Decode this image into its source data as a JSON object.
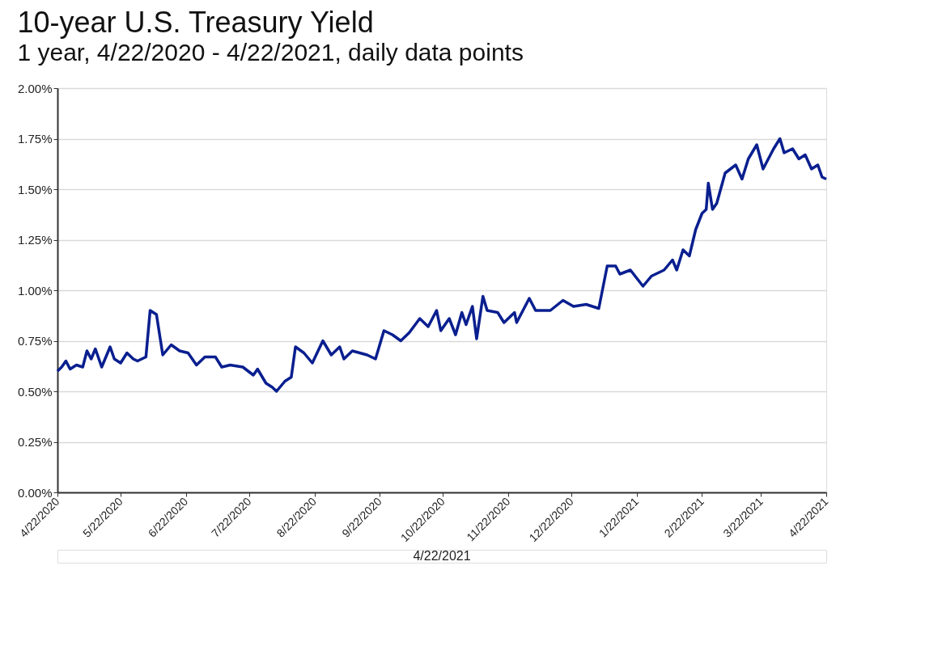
{
  "chart_data": {
    "type": "line",
    "title": "10-year U.S. Treasury Yield",
    "subtitle": "1 year, 4/22/2020 - 4/22/2021, daily data points",
    "annotations": [
      "4/22/2021"
    ],
    "x": [
      "2020-04-22",
      "2020-04-24",
      "2020-04-26",
      "2020-04-28",
      "2020-05-01",
      "2020-05-04",
      "2020-05-06",
      "2020-05-08",
      "2020-05-10",
      "2020-05-13",
      "2020-05-17",
      "2020-05-19",
      "2020-05-22",
      "2020-05-25",
      "2020-05-28",
      "2020-05-30",
      "2020-06-03",
      "2020-06-05",
      "2020-06-08",
      "2020-06-11",
      "2020-06-15",
      "2020-06-19",
      "2020-06-23",
      "2020-06-27",
      "2020-07-01",
      "2020-07-06",
      "2020-07-09",
      "2020-07-13",
      "2020-07-19",
      "2020-07-24",
      "2020-07-26",
      "2020-07-30",
      "2020-08-02",
      "2020-08-04",
      "2020-08-08",
      "2020-08-11",
      "2020-08-13",
      "2020-08-17",
      "2020-08-21",
      "2020-08-26",
      "2020-08-30",
      "2020-09-03",
      "2020-09-05",
      "2020-09-09",
      "2020-09-16",
      "2020-09-20",
      "2020-09-24",
      "2020-09-28",
      "2020-10-02",
      "2020-10-06",
      "2020-10-11",
      "2020-10-15",
      "2020-10-19",
      "2020-10-21",
      "2020-10-25",
      "2020-10-28",
      "2020-10-31",
      "2020-11-02",
      "2020-11-05",
      "2020-11-07",
      "2020-11-10",
      "2020-11-12",
      "2020-11-17",
      "2020-11-20",
      "2020-11-25",
      "2020-11-26",
      "2020-12-02",
      "2020-12-05",
      "2020-12-12",
      "2020-12-18",
      "2020-12-23",
      "2020-12-29",
      "2021-01-04",
      "2021-01-08",
      "2021-01-12",
      "2021-01-14",
      "2021-01-19",
      "2021-01-25",
      "2021-01-29",
      "2021-02-04",
      "2021-02-08",
      "2021-02-10",
      "2021-02-13",
      "2021-02-16",
      "2021-02-19",
      "2021-02-22",
      "2021-02-24",
      "2021-02-25",
      "2021-02-27",
      "2021-03-01",
      "2021-03-05",
      "2021-03-10",
      "2021-03-13",
      "2021-03-16",
      "2021-03-20",
      "2021-03-23",
      "2021-03-28",
      "2021-03-31",
      "2021-04-02",
      "2021-04-06",
      "2021-04-09",
      "2021-04-12",
      "2021-04-15",
      "2021-04-18",
      "2021-04-20",
      "2021-04-22"
    ],
    "series": [
      {
        "color": "#0a1f8f",
        "values": [
          0.6,
          0.62,
          0.65,
          0.61,
          0.63,
          0.62,
          0.7,
          0.66,
          0.71,
          0.62,
          0.72,
          0.66,
          0.64,
          0.69,
          0.66,
          0.65,
          0.67,
          0.9,
          0.88,
          0.68,
          0.73,
          0.7,
          0.69,
          0.63,
          0.67,
          0.67,
          0.62,
          0.63,
          0.62,
          0.58,
          0.61,
          0.54,
          0.52,
          0.5,
          0.55,
          0.57,
          0.72,
          0.69,
          0.64,
          0.75,
          0.68,
          0.72,
          0.66,
          0.7,
          0.68,
          0.66,
          0.8,
          0.78,
          0.75,
          0.79,
          0.86,
          0.82,
          0.9,
          0.8,
          0.86,
          0.78,
          0.89,
          0.83,
          0.92,
          0.76,
          0.97,
          0.9,
          0.89,
          0.84,
          0.89,
          0.84,
          0.96,
          0.9,
          0.9,
          0.95,
          0.92,
          0.93,
          0.91,
          1.12,
          1.12,
          1.08,
          1.1,
          1.02,
          1.07,
          1.1,
          1.15,
          1.1,
          1.2,
          1.17,
          1.3,
          1.38,
          1.4,
          1.53,
          1.4,
          1.43,
          1.58,
          1.62,
          1.55,
          1.65,
          1.72,
          1.6,
          1.7,
          1.75,
          1.68,
          1.7,
          1.65,
          1.67,
          1.6,
          1.62,
          1.56,
          1.55
        ]
      }
    ],
    "xlim": [
      "2020-04-22",
      "2021-04-22"
    ],
    "xticks": [
      {
        "value": "2020-04-22",
        "label": "4/22/2020"
      },
      {
        "value": "2020-05-22",
        "label": "5/22/2020"
      },
      {
        "value": "2020-06-22",
        "label": "6/22/2020"
      },
      {
        "value": "2020-07-22",
        "label": "7/22/2020"
      },
      {
        "value": "2020-08-22",
        "label": "8/22/2020"
      },
      {
        "value": "2020-09-22",
        "label": "9/22/2020"
      },
      {
        "value": "2020-10-22",
        "label": "10/22/2020"
      },
      {
        "value": "2020-11-22",
        "label": "11/22/2020"
      },
      {
        "value": "2020-12-22",
        "label": "12/22/2020"
      },
      {
        "value": "2021-01-22",
        "label": "1/22/2021"
      },
      {
        "value": "2021-02-22",
        "label": "2/22/2021"
      },
      {
        "value": "2021-03-22",
        "label": "3/22/2021"
      },
      {
        "value": "2021-04-22",
        "label": "4/22/2021"
      }
    ],
    "ylim": [
      0,
      2
    ],
    "yticks": [
      {
        "value": 0,
        "label": "0.00%"
      },
      {
        "value": 0.25,
        "label": "0.25%"
      },
      {
        "value": 0.5,
        "label": "0.50%"
      },
      {
        "value": 0.75,
        "label": "0.75%"
      },
      {
        "value": 1,
        "label": "1.00%"
      },
      {
        "value": 1.25,
        "label": "1.25%"
      },
      {
        "value": 1.5,
        "label": "1.50%"
      },
      {
        "value": 1.75,
        "label": "1.75%"
      },
      {
        "value": 2,
        "label": "2.00%"
      }
    ],
    "grid": "y",
    "marker": "none",
    "line_style": "solid"
  }
}
